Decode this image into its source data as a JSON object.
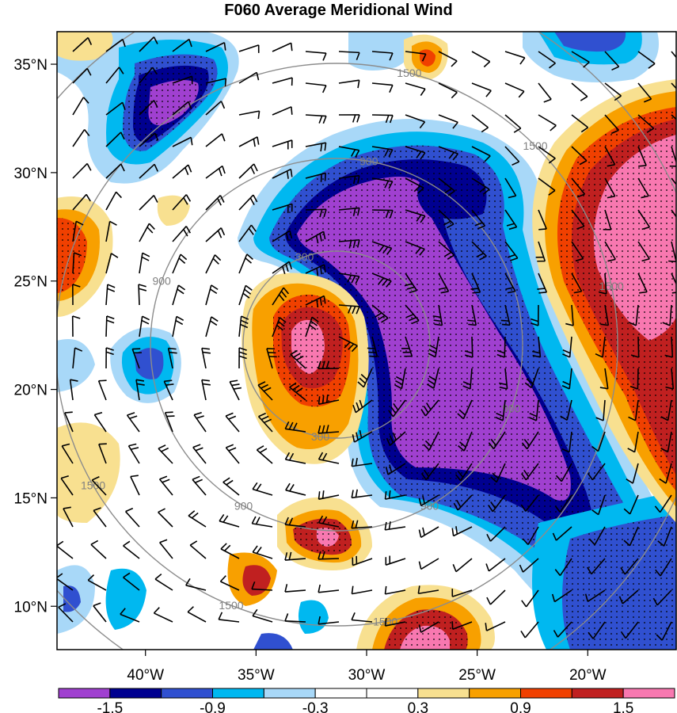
{
  "chart_data": {
    "type": "heatmap",
    "title": "F060 Average Meridional Wind",
    "x_ticks": [
      {
        "value": -40,
        "label": "40°W"
      },
      {
        "value": -35,
        "label": "35°W"
      },
      {
        "value": -30,
        "label": "30°W"
      },
      {
        "value": -25,
        "label": "25°W"
      },
      {
        "value": -20,
        "label": "20°W"
      }
    ],
    "y_ticks": [
      {
        "value": 35,
        "label": "35°N"
      },
      {
        "value": 30,
        "label": "30°N"
      },
      {
        "value": 25,
        "label": "25°N"
      },
      {
        "value": 20,
        "label": "20°N"
      },
      {
        "value": 15,
        "label": "15°N"
      },
      {
        "value": 10,
        "label": "10°N"
      }
    ],
    "xlim": [
      -44,
      -16
    ],
    "ylim": [
      8,
      36.5
    ],
    "colorbar": {
      "colors": [
        "#a040d0",
        "#000090",
        "#3050d0",
        "#00b8f0",
        "#a8d8f8",
        "#ffffff",
        "#ffffff",
        "#f8e090",
        "#f8a000",
        "#f04000",
        "#c02020",
        "#f878b0"
      ],
      "labels": [
        {
          "index": 1,
          "text": "-1.5"
        },
        {
          "index": 3,
          "text": "-0.9"
        },
        {
          "index": 5,
          "text": "-0.3"
        },
        {
          "index": 7,
          "text": "0.3"
        },
        {
          "index": 9,
          "text": "0.9"
        },
        {
          "index": 11,
          "text": "1.5"
        }
      ]
    },
    "range_ring_labels": [
      "300",
      "300",
      "900",
      "900",
      "900",
      "900",
      "900",
      "1500",
      "1500",
      "1500",
      "1500",
      "1500",
      "1500"
    ],
    "grid": false
  }
}
